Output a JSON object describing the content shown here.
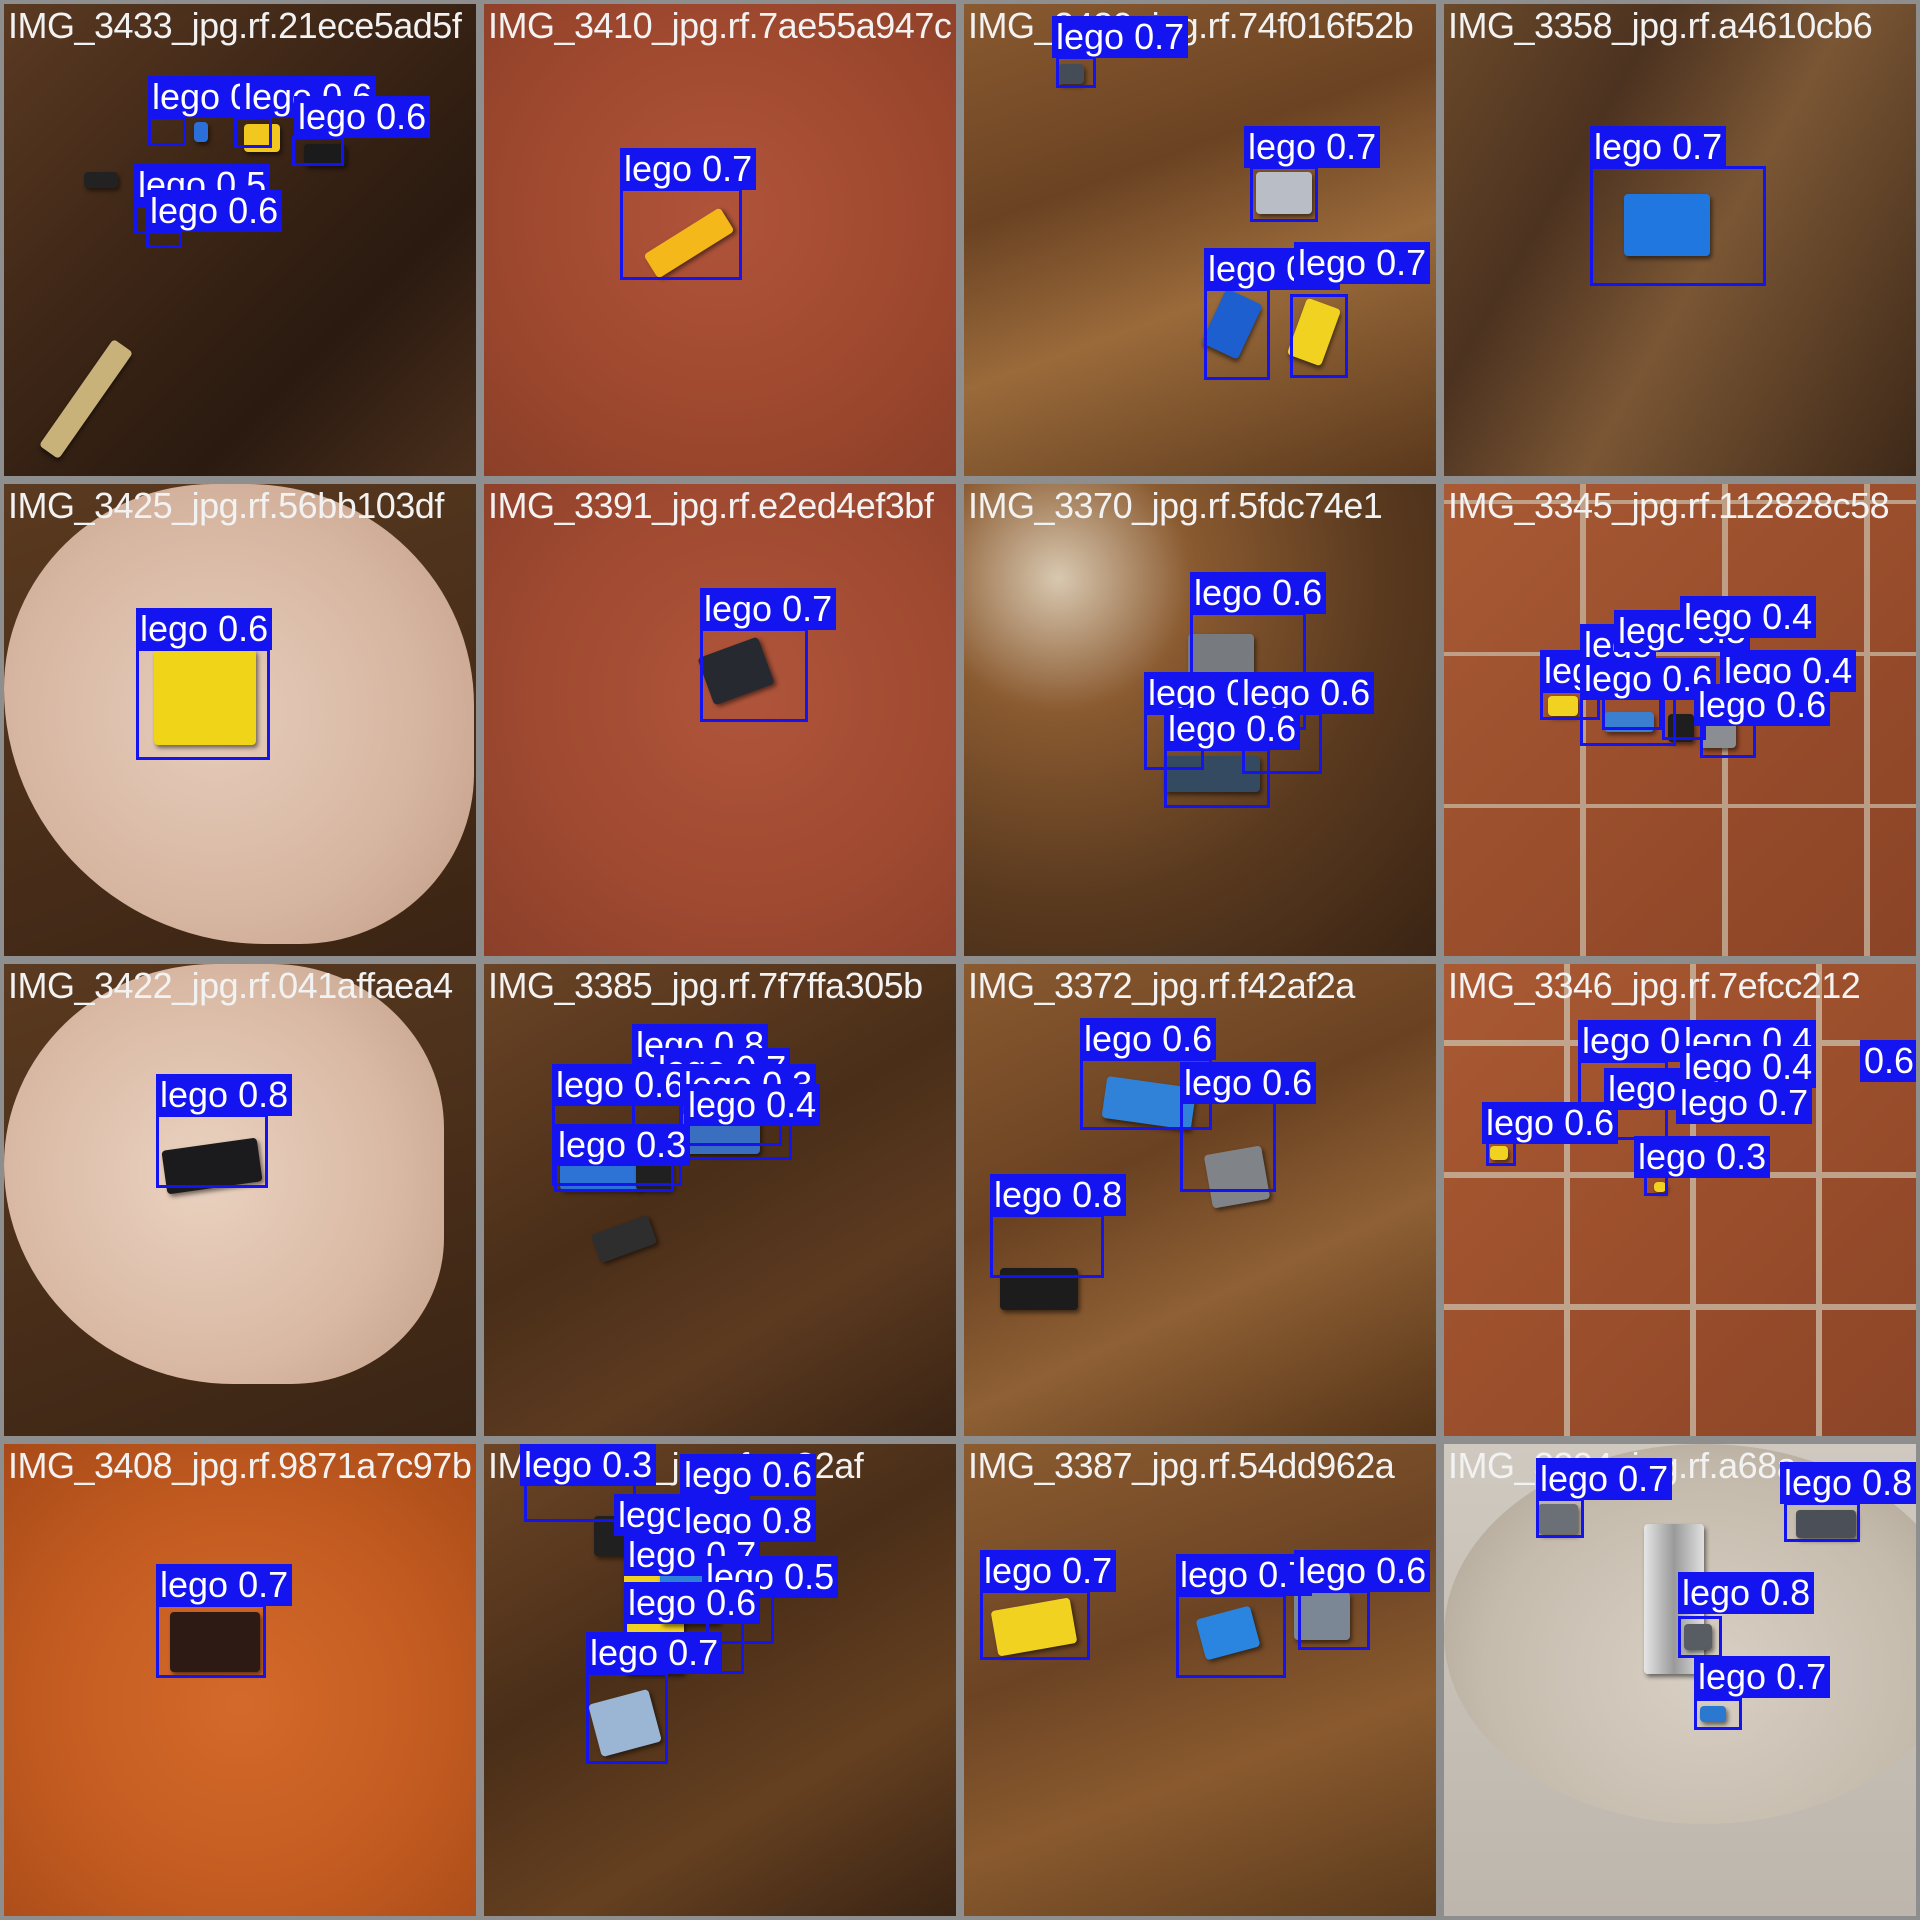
{
  "class_name": "lego",
  "colors": {
    "box": "#1414f0",
    "label_text": "#ffffff",
    "filename_text": "#f2f2f2",
    "tile_border": "#8e8e8e"
  },
  "tiles": [
    {
      "filename": "IMG_3433_jpg.rf.21ece5ad5f",
      "bg": "wood-dark",
      "detections": [
        {
          "text": "lego 0.4"
        },
        {
          "text": "lego 0.6"
        },
        {
          "text": "lego 0.6"
        },
        {
          "text": "lego 0.5"
        },
        {
          "text": "lego 0.6"
        }
      ]
    },
    {
      "filename": "IMG_3410_jpg.rf.7ae55a947c",
      "bg": "orange-fabric",
      "detections": [
        {
          "text": "lego 0.7"
        }
      ]
    },
    {
      "filename": "IMG_3420_jpg.rf.74f016f52b",
      "bg": "wood-light",
      "detections": [
        {
          "text": "lego 0.7"
        },
        {
          "text": "lego 0.7"
        },
        {
          "text": "lego 0.7"
        },
        {
          "text": "lego 0.7"
        }
      ]
    },
    {
      "filename": "IMG_3358_jpg.rf.a4610cb6",
      "bg": "wood-blur",
      "detections": [
        {
          "text": "lego 0.7"
        }
      ]
    },
    {
      "filename": "IMG_3425_jpg.rf.56bb103df",
      "bg": "hand-wood",
      "detections": [
        {
          "text": "lego 0.6"
        }
      ]
    },
    {
      "filename": "IMG_3391_jpg.rf.e2ed4ef3bf",
      "bg": "orange-fabric",
      "detections": [
        {
          "text": "lego 0.7"
        }
      ]
    },
    {
      "filename": "IMG_3370_jpg.rf.5fdc74e1",
      "bg": "wood-glare",
      "detections": [
        {
          "text": "lego 0.6"
        },
        {
          "text": "lego 0.7"
        },
        {
          "text": "lego 0.6"
        },
        {
          "text": "lego 0.6"
        }
      ]
    },
    {
      "filename": "IMG_3345_jpg.rf.112828c58",
      "bg": "tile-floor",
      "detections": [
        {
          "text": "lego 0.4"
        },
        {
          "text": "lego 0.4"
        },
        {
          "text": "lego 0.6"
        },
        {
          "text": "lego 0.6"
        },
        {
          "text": "lego 0.5"
        },
        {
          "text": "lego"
        },
        {
          "text": "lego"
        }
      ]
    },
    {
      "filename": "IMG_3422_jpg.rf.041affaea4",
      "bg": "hand-wood",
      "detections": [
        {
          "text": "lego 0.8"
        }
      ]
    },
    {
      "filename": "IMG_3385_jpg.rf.7f7ffa305b",
      "bg": "wood-dark",
      "detections": [
        {
          "text": "lego 0.8"
        },
        {
          "text": "lego 0.7"
        },
        {
          "text": "lego 0.6"
        },
        {
          "text": "lego 0.3"
        },
        {
          "text": "lego 0.4"
        },
        {
          "text": "lego 0.3"
        }
      ]
    },
    {
      "filename": "IMG_3372_jpg.rf.f42af2a",
      "bg": "wood-light",
      "detections": [
        {
          "text": "lego 0.6"
        },
        {
          "text": "lego 0.6"
        },
        {
          "text": "lego 0.8"
        }
      ]
    },
    {
      "filename": "IMG_3346_jpg.rf.7efcc212",
      "bg": "tile-floor",
      "detections": [
        {
          "text": "lego 0.3"
        },
        {
          "text": "lego 0.4"
        },
        {
          "text": "lego 0.4"
        },
        {
          "text": "0.6"
        },
        {
          "text": "lego 0.7"
        },
        {
          "text": "lego 0.6"
        },
        {
          "text": "lego 0.3"
        },
        {
          "text": "lego"
        }
      ]
    },
    {
      "filename": "IMG_3408_jpg.rf.9871a7c97b",
      "bg": "orange-fabric-vivid",
      "detections": [
        {
          "text": "lego 0.7"
        }
      ]
    },
    {
      "filename": "IMG_3384_jpg.rf.ce82af",
      "bg": "wood-dark",
      "detections": [
        {
          "text": "lego 0.3"
        },
        {
          "text": "lego 0.6"
        },
        {
          "text": "lego 0.7"
        },
        {
          "text": "lego 0.8"
        },
        {
          "text": "lego 0.7"
        },
        {
          "text": "lego 0.5"
        },
        {
          "text": "lego 0.6"
        },
        {
          "text": "lego 0.7"
        }
      ]
    },
    {
      "filename": "IMG_3387_jpg.rf.54dd962a",
      "bg": "wood-light",
      "detections": [
        {
          "text": "lego 0.7"
        },
        {
          "text": "lego 0.7"
        },
        {
          "text": "lego 0.6"
        }
      ]
    },
    {
      "filename": "IMG_3394_jpg.rf.a68a",
      "bg": "sink",
      "detections": [
        {
          "text": "lego 0.7"
        },
        {
          "text": "lego 0.8"
        },
        {
          "text": "lego 0.8"
        },
        {
          "text": "lego 0.7"
        }
      ]
    }
  ]
}
